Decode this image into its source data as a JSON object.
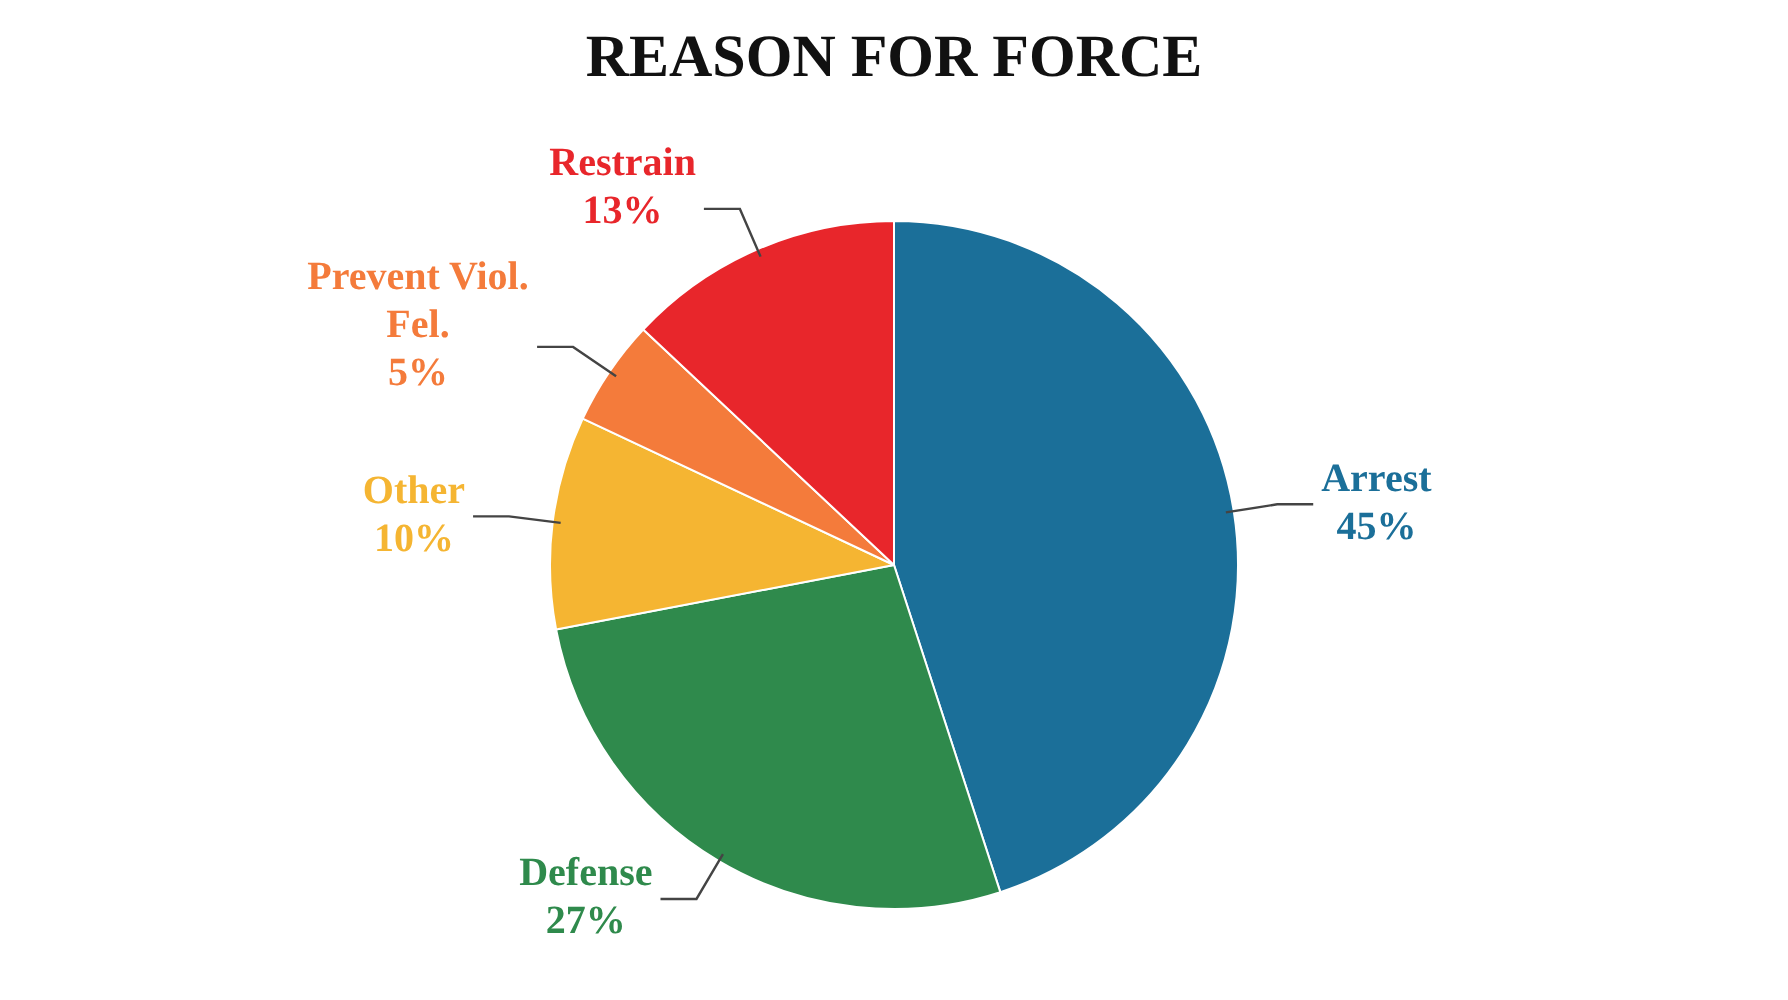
{
  "chart_data": {
    "type": "pie",
    "title": "REASON FOR FORCE",
    "categories": [
      "Arrest",
      "Defense",
      "Other",
      "Prevent Viol. Fel.",
      "Restrain"
    ],
    "values": [
      45,
      27,
      10,
      5,
      13
    ],
    "colors": [
      "#1b6f99",
      "#2f8a4c",
      "#f5b532",
      "#f47b3b",
      "#e8262b"
    ],
    "value_labels": [
      "45%",
      "27%",
      "10%",
      "5%",
      "13%"
    ],
    "legend": false
  }
}
